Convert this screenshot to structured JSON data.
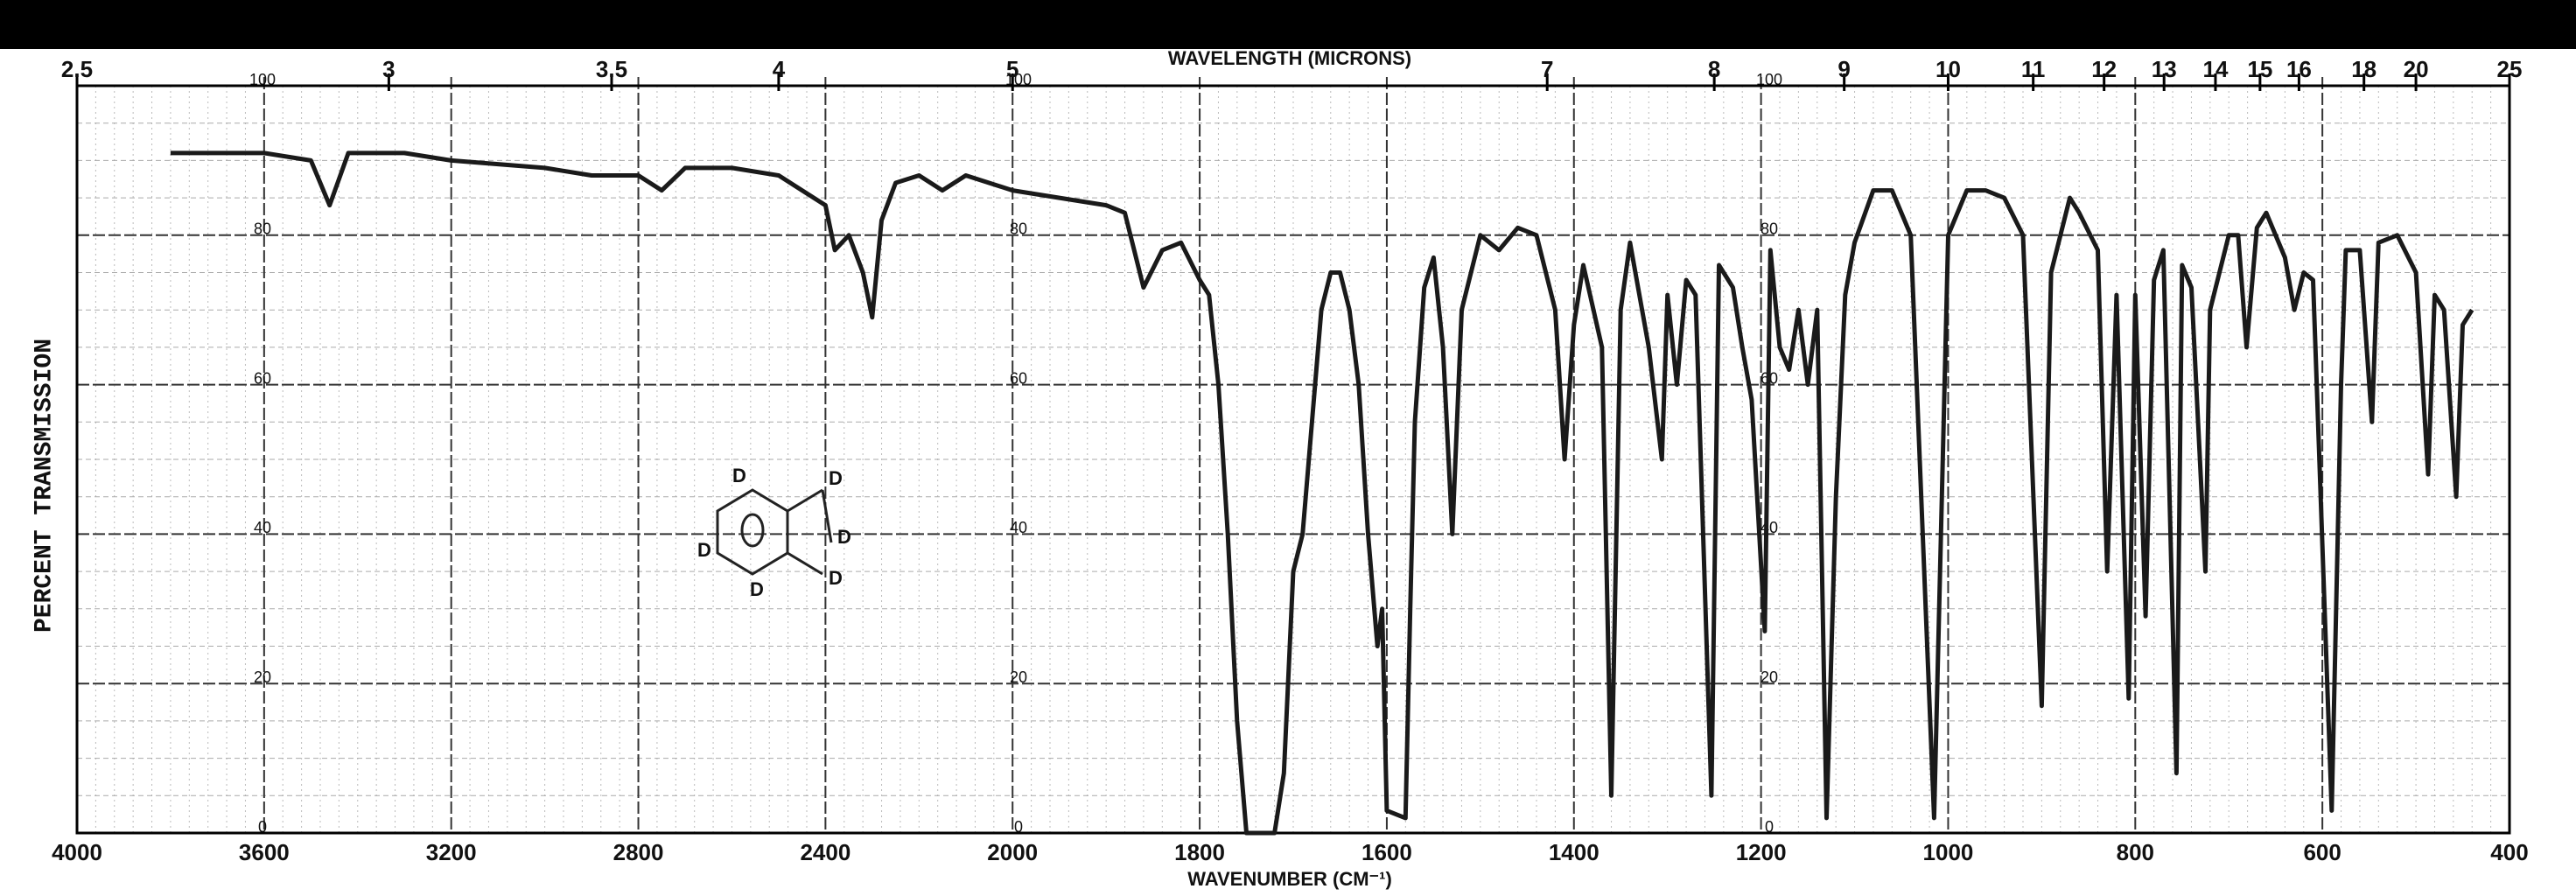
{
  "chart_data": {
    "type": "line",
    "x_title": "WAVENUMBER (CM⁻¹)",
    "x2_title": "WAVELENGTH (MICRONS)",
    "y_title": "PERCENT TRANSMISSION",
    "annotation": "D",
    "color": "#1a1a1a",
    "grid": true,
    "xlim": [
      4000,
      400
    ],
    "xticks": [
      4000,
      3600,
      3200,
      2800,
      2400,
      2000,
      1800,
      1600,
      1400,
      1200,
      1000,
      800,
      600,
      400
    ],
    "x2ticks": [
      2.5,
      3,
      3.5,
      4,
      5,
      7,
      8,
      9,
      10,
      11,
      12,
      13,
      14,
      15,
      16,
      18,
      20,
      25
    ],
    "ylim": [
      0,
      100
    ],
    "yticks": [
      0,
      20,
      40,
      60,
      80,
      100
    ],
    "x": [
      3800,
      3600,
      3500,
      3460,
      3420,
      3300,
      3200,
      3000,
      2900,
      2800,
      2750,
      2700,
      2600,
      2500,
      2450,
      2400,
      2380,
      2350,
      2320,
      2300,
      2280,
      2250,
      2200,
      2150,
      2100,
      2000,
      1950,
      1900,
      1880,
      1860,
      1840,
      1820,
      1800,
      1790,
      1780,
      1770,
      1760,
      1750,
      1720,
      1710,
      1700,
      1690,
      1680,
      1670,
      1660,
      1650,
      1640,
      1630,
      1620,
      1610,
      1605,
      1600,
      1580,
      1575,
      1570,
      1560,
      1550,
      1540,
      1530,
      1520,
      1500,
      1480,
      1460,
      1440,
      1420,
      1410,
      1400,
      1390,
      1370,
      1360,
      1350,
      1340,
      1320,
      1306,
      1300,
      1290,
      1280,
      1270,
      1253,
      1245,
      1230,
      1220,
      1210,
      1196,
      1190,
      1180,
      1170,
      1160,
      1150,
      1140,
      1130,
      1120,
      1110,
      1100,
      1080,
      1060,
      1040,
      1015,
      1000,
      980,
      960,
      940,
      920,
      900,
      890,
      870,
      860,
      840,
      830,
      820,
      807,
      800,
      789,
      780,
      770,
      756,
      750,
      740,
      725,
      720,
      700,
      690,
      681,
      670,
      660,
      640,
      630,
      620,
      610,
      590,
      580,
      575,
      560,
      547,
      540,
      520,
      500,
      487,
      480,
      470,
      457,
      450,
      440
    ],
    "values": [
      91,
      91,
      90,
      84,
      91,
      91,
      90,
      89,
      88,
      88,
      86,
      89,
      89,
      88,
      86,
      84,
      78,
      80,
      75,
      69,
      82,
      87,
      88,
      86,
      88,
      86,
      85,
      84,
      83,
      73,
      78,
      79,
      74,
      72,
      60,
      40,
      15,
      0,
      0,
      8,
      35,
      40,
      55,
      70,
      75,
      75,
      70,
      60,
      40,
      25,
      30,
      3,
      2,
      30,
      55,
      73,
      77,
      65,
      40,
      70,
      80,
      78,
      81,
      80,
      70,
      50,
      68,
      76,
      65,
      5,
      70,
      79,
      65,
      50,
      72,
      60,
      74,
      72,
      5,
      76,
      73,
      65,
      58,
      27,
      78,
      65,
      62,
      70,
      60,
      70,
      2,
      45,
      72,
      79,
      86,
      86,
      80,
      2,
      80,
      86,
      86,
      85,
      80,
      17,
      75,
      85,
      83,
      78,
      35,
      72,
      18,
      72,
      29,
      74,
      78,
      8,
      76,
      73,
      35,
      70,
      80,
      80,
      65,
      81,
      83,
      77,
      70,
      75,
      74,
      3,
      60,
      78,
      78,
      55,
      79,
      80,
      75,
      48,
      72,
      70,
      45,
      68,
      70
    ]
  }
}
